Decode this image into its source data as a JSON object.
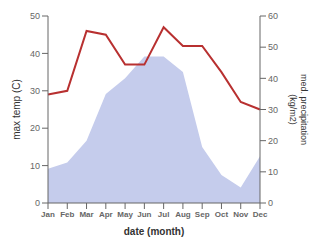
{
  "chart_data": {
    "type": "line",
    "categories": [
      "Jan",
      "Feb",
      "Mar",
      "Apr",
      "May",
      "Jun",
      "Jul",
      "Aug",
      "Sep",
      "Oct",
      "Nov",
      "Dec"
    ],
    "series": [
      {
        "type": "area",
        "color": "#c5ccec",
        "axis": "y2",
        "values": [
          11,
          13,
          20,
          35,
          40,
          47,
          47,
          42,
          18,
          9,
          5,
          15
        ]
      },
      {
        "type": "line",
        "color": "#b83030",
        "values": [
          29,
          30,
          46,
          45,
          37,
          37,
          47,
          42,
          42,
          35,
          27,
          25
        ]
      }
    ],
    "xlabel": "date (month)",
    "ylabel": "max temp (C)",
    "y2label": "med. precipitation\n(kg/m2)",
    "ylim": [
      0,
      50
    ],
    "yticks": [
      0,
      10,
      20,
      30,
      40,
      50
    ],
    "y2lim": [
      0,
      60
    ],
    "y2ticks": [
      0,
      10,
      20,
      30,
      40,
      50,
      60
    ]
  }
}
